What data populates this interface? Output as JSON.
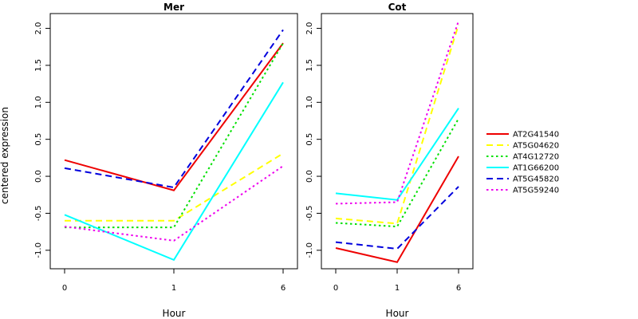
{
  "chart_data": {
    "type": "line",
    "ylabel": "centered expression",
    "legend_position": "right",
    "series_styles": [
      {
        "name": "AT2G41540",
        "color": "#ee0000",
        "dash": "solid"
      },
      {
        "name": "AT5G04620",
        "color": "#ffff00",
        "dash": "dashed"
      },
      {
        "name": "AT4G12720",
        "color": "#00e000",
        "dash": "dotted"
      },
      {
        "name": "AT1G66200",
        "color": "#00ffff",
        "dash": "solid"
      },
      {
        "name": "AT5G45820",
        "color": "#0000dd",
        "dash": "dashed"
      },
      {
        "name": "AT5G59240",
        "color": "#ee00ee",
        "dash": "dotted"
      }
    ],
    "panels": [
      {
        "title": "Mer",
        "xlabel": "Hour",
        "x_tick_labels": [
          "0",
          "1",
          "6"
        ],
        "ylim": [
          -1.25,
          2.2
        ],
        "y_ticks": [
          -1.0,
          -0.5,
          0.0,
          0.5,
          1.0,
          1.5,
          2.0
        ],
        "y_tick_labels": [
          "-1.0",
          "-0.5",
          "0.0",
          "0.5",
          "1.0",
          "1.5",
          "2.0"
        ],
        "series": [
          {
            "name": "AT2G41540",
            "values": [
              0.22,
              -0.19,
              1.8
            ]
          },
          {
            "name": "AT5G04620",
            "values": [
              -0.6,
              -0.6,
              0.31
            ]
          },
          {
            "name": "AT4G12720",
            "values": [
              -0.69,
              -0.69,
              1.8
            ]
          },
          {
            "name": "AT1G66200",
            "values": [
              -0.52,
              -1.13,
              1.27
            ]
          },
          {
            "name": "AT5G45820",
            "values": [
              0.11,
              -0.15,
              1.98
            ]
          },
          {
            "name": "AT5G59240",
            "values": [
              -0.68,
              -0.87,
              0.14
            ]
          }
        ]
      },
      {
        "title": "Cot",
        "xlabel": "Hour",
        "x_tick_labels": [
          "0",
          "1",
          "6"
        ],
        "ylim": [
          -1.25,
          2.2
        ],
        "y_ticks": [
          -1.0,
          -0.5,
          0.0,
          0.5,
          1.0,
          1.5,
          2.0
        ],
        "y_tick_labels": [
          "-1.0",
          "-0.5",
          "0.0",
          "0.5",
          "1.0",
          "1.5",
          "2.0"
        ],
        "series": [
          {
            "name": "AT2G41540",
            "values": [
              -0.97,
              -1.16,
              0.27
            ]
          },
          {
            "name": "AT5G04620",
            "values": [
              -0.57,
              -0.64,
              2.05
            ]
          },
          {
            "name": "AT4G12720",
            "values": [
              -0.63,
              -0.68,
              0.78
            ]
          },
          {
            "name": "AT1G66200",
            "values": [
              -0.23,
              -0.32,
              0.92
            ]
          },
          {
            "name": "AT5G45820",
            "values": [
              -0.89,
              -0.98,
              -0.14
            ]
          },
          {
            "name": "AT5G59240",
            "values": [
              -0.37,
              -0.35,
              2.1
            ]
          }
        ]
      }
    ]
  }
}
